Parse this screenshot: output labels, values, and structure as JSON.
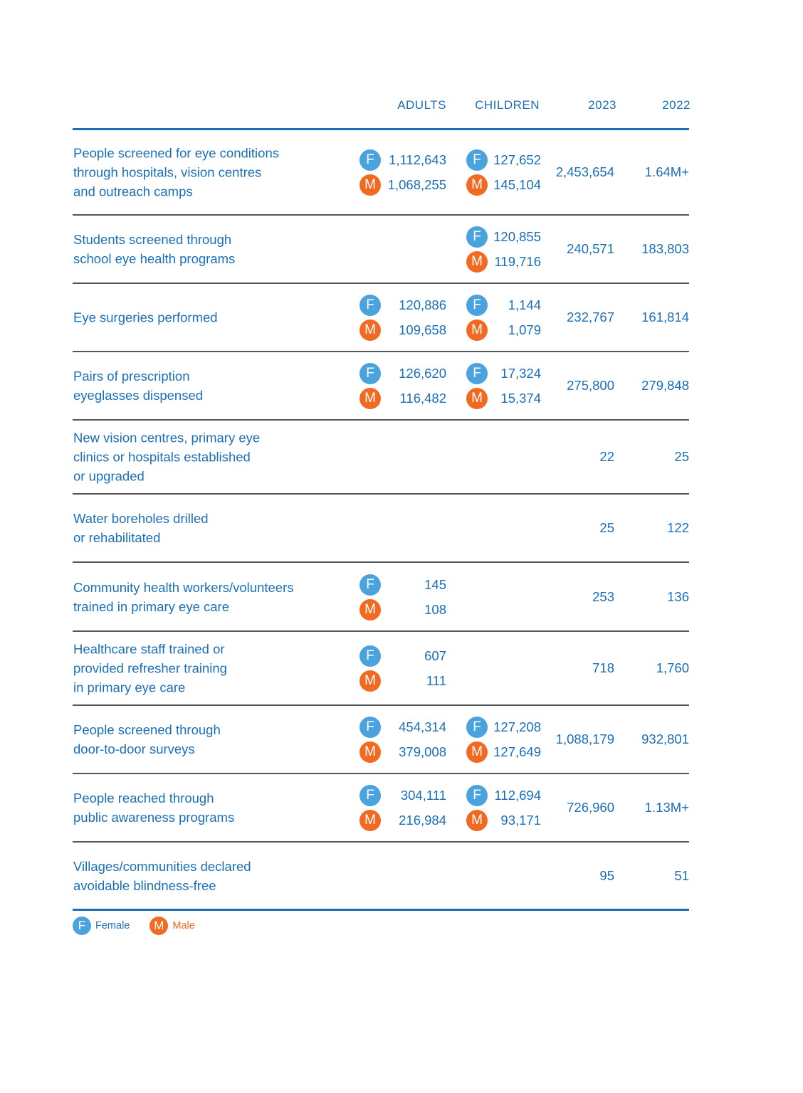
{
  "headers": {
    "adults": "ADULTS",
    "children": "CHILDREN",
    "y2023": "2023",
    "y2022": "2022"
  },
  "colors": {
    "text": "#1a6fb8",
    "female": "#4aa3dc",
    "male": "#f26a22",
    "rule": "#555555"
  },
  "legend": {
    "female_letter": "F",
    "female_label": "Female",
    "male_letter": "M",
    "male_label": "Male"
  },
  "rows": [
    {
      "label": [
        "People screened for eye conditions",
        "through hospitals, vision centres",
        "and outreach camps"
      ],
      "adults": {
        "F": "1,112,643",
        "M": "1,068,255"
      },
      "children": {
        "F": "127,652",
        "M": "145,104"
      },
      "y2023": "2,453,654",
      "y2022": "1.64M+"
    },
    {
      "label": [
        "Students screened through",
        "school eye health programs"
      ],
      "children": {
        "F": "120,855",
        "M": "119,716"
      },
      "y2023": "240,571",
      "y2022": "183,803"
    },
    {
      "label": [
        "Eye surgeries performed"
      ],
      "adults": {
        "F": "120,886",
        "M": "109,658"
      },
      "children": {
        "F": "1,144",
        "M": "1,079"
      },
      "y2023": "232,767",
      "y2022": "161,814"
    },
    {
      "label": [
        "Pairs of prescription",
        "eyeglasses dispensed"
      ],
      "adults": {
        "F": "126,620",
        "M": "116,482"
      },
      "children": {
        "F": "17,324",
        "M": "15,374"
      },
      "y2023": "275,800",
      "y2022": "279,848"
    },
    {
      "label": [
        "New vision centres, primary eye",
        "clinics or hospitals established",
        "or upgraded"
      ],
      "y2023": "22",
      "y2022": "25"
    },
    {
      "label": [
        "Water boreholes drilled",
        "or rehabilitated"
      ],
      "y2023": "25",
      "y2022": "122"
    },
    {
      "label": [
        "Community health workers/volunteers",
        "trained in primary eye care"
      ],
      "adults": {
        "F": "145",
        "M": "108"
      },
      "y2023": "253",
      "y2022": "136"
    },
    {
      "label": [
        "Healthcare staff trained or",
        "provided refresher training",
        "in primary eye care"
      ],
      "adults": {
        "F": "607",
        "M": "111"
      },
      "y2023": "718",
      "y2022": "1,760"
    },
    {
      "label": [
        "People screened through",
        "door-to-door surveys"
      ],
      "adults": {
        "F": "454,314",
        "M": "379,008"
      },
      "children": {
        "F": "127,208",
        "M": "127,649"
      },
      "y2023": "1,088,179",
      "y2022": "932,801"
    },
    {
      "label": [
        "People reached through",
        "public awareness programs"
      ],
      "adults": {
        "F": "304,111",
        "M": "216,984"
      },
      "children": {
        "F": "112,694",
        "M": "93,171"
      },
      "y2023": "726,960",
      "y2022": "1.13M+"
    },
    {
      "label": [
        "Villages/communities declared",
        "avoidable blindness-free"
      ],
      "y2023": "95",
      "y2022": "51"
    }
  ]
}
